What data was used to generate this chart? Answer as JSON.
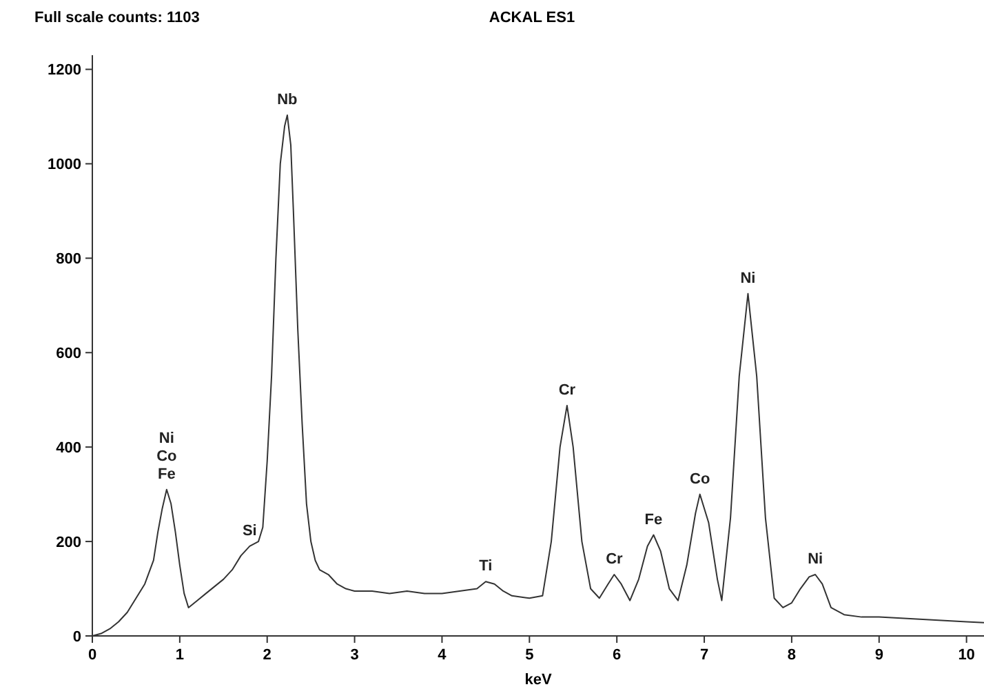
{
  "chart_data": {
    "type": "line",
    "title": "ACKAL ES1",
    "xlabel": "keV",
    "annotations": [
      "Full scale counts: 1103",
      {
        "text": "Ni\nCo\nFe",
        "x": 0.85,
        "y": 310
      },
      {
        "text": "Si",
        "x": 1.8,
        "y": 190
      },
      {
        "text": "Nb",
        "x": 2.23,
        "y": 1103
      },
      {
        "text": "Ti",
        "x": 4.5,
        "y": 115
      },
      {
        "text": "Cr",
        "x": 5.43,
        "y": 488
      },
      {
        "text": "Cr",
        "x": 5.97,
        "y": 130
      },
      {
        "text": "Fe",
        "x": 6.42,
        "y": 214
      },
      {
        "text": "Co",
        "x": 6.95,
        "y": 300
      },
      {
        "text": "Ni",
        "x": 7.5,
        "y": 725
      },
      {
        "text": "Ni",
        "x": 8.27,
        "y": 130
      }
    ],
    "series": [
      {
        "color": "#333333",
        "x": [
          0,
          0.1,
          0.2,
          0.3,
          0.4,
          0.5,
          0.6,
          0.7,
          0.75,
          0.8,
          0.85,
          0.9,
          0.95,
          1.0,
          1.05,
          1.1,
          1.2,
          1.3,
          1.4,
          1.5,
          1.6,
          1.7,
          1.8,
          1.9,
          1.95,
          2.0,
          2.05,
          2.1,
          2.15,
          2.2,
          2.23,
          2.27,
          2.3,
          2.35,
          2.4,
          2.45,
          2.5,
          2.55,
          2.6,
          2.7,
          2.8,
          2.9,
          3.0,
          3.2,
          3.4,
          3.6,
          3.8,
          4.0,
          4.2,
          4.4,
          4.5,
          4.6,
          4.7,
          4.8,
          5.0,
          5.15,
          5.25,
          5.35,
          5.43,
          5.5,
          5.6,
          5.7,
          5.8,
          5.9,
          5.97,
          6.05,
          6.15,
          6.25,
          6.35,
          6.42,
          6.5,
          6.6,
          6.7,
          6.8,
          6.9,
          6.95,
          7.05,
          7.15,
          7.2,
          7.3,
          7.4,
          7.5,
          7.6,
          7.7,
          7.8,
          7.9,
          8.0,
          8.1,
          8.2,
          8.27,
          8.35,
          8.45,
          8.6,
          8.8,
          9.0,
          9.5,
          10.0,
          10.2
        ],
        "values": [
          0,
          5,
          15,
          30,
          50,
          80,
          110,
          160,
          220,
          270,
          310,
          280,
          220,
          150,
          90,
          60,
          75,
          90,
          105,
          120,
          140,
          170,
          190,
          200,
          230,
          370,
          550,
          800,
          1000,
          1080,
          1103,
          1040,
          900,
          650,
          450,
          280,
          200,
          160,
          140,
          130,
          110,
          100,
          95,
          95,
          90,
          95,
          90,
          90,
          95,
          100,
          115,
          110,
          95,
          85,
          80,
          85,
          200,
          400,
          488,
          400,
          200,
          100,
          80,
          110,
          130,
          110,
          75,
          120,
          190,
          214,
          180,
          100,
          75,
          150,
          260,
          300,
          240,
          120,
          75,
          250,
          550,
          725,
          550,
          250,
          80,
          60,
          70,
          100,
          125,
          130,
          110,
          60,
          45,
          40,
          40,
          35,
          30,
          28
        ]
      }
    ],
    "xlim": [
      0,
      10.2
    ],
    "ylim": [
      0,
      1230
    ],
    "xticks": [
      0,
      1,
      2,
      3,
      4,
      5,
      6,
      7,
      8,
      9,
      10
    ],
    "yticks": [
      0,
      200,
      400,
      600,
      800,
      1000,
      1200
    ],
    "grid": false,
    "marker": "none",
    "line_style": "solid"
  }
}
